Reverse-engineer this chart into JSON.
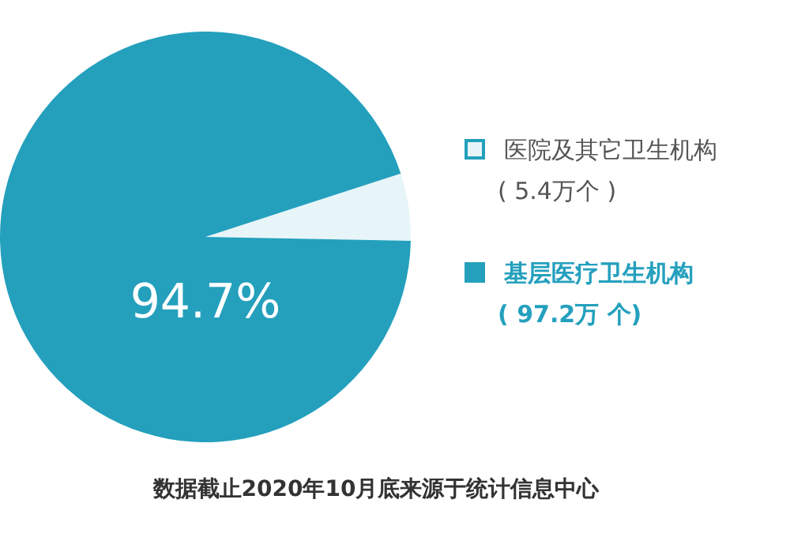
{
  "chart_data": {
    "type": "pie",
    "categories": [
      "医院及其它卫生机构\n( 5.4万个 )",
      "基层医疗卫生机构\n( 97.2万 个)"
    ],
    "values": [
      5.3,
      94.7
    ],
    "colors": [
      "#e8f5f8",
      "#24a0bd"
    ],
    "value_labels": [
      null,
      "94.7%"
    ],
    "legend": "right",
    "annotations": [
      "数据截止2020年10月底来源于统计信息中心"
    ]
  }
}
